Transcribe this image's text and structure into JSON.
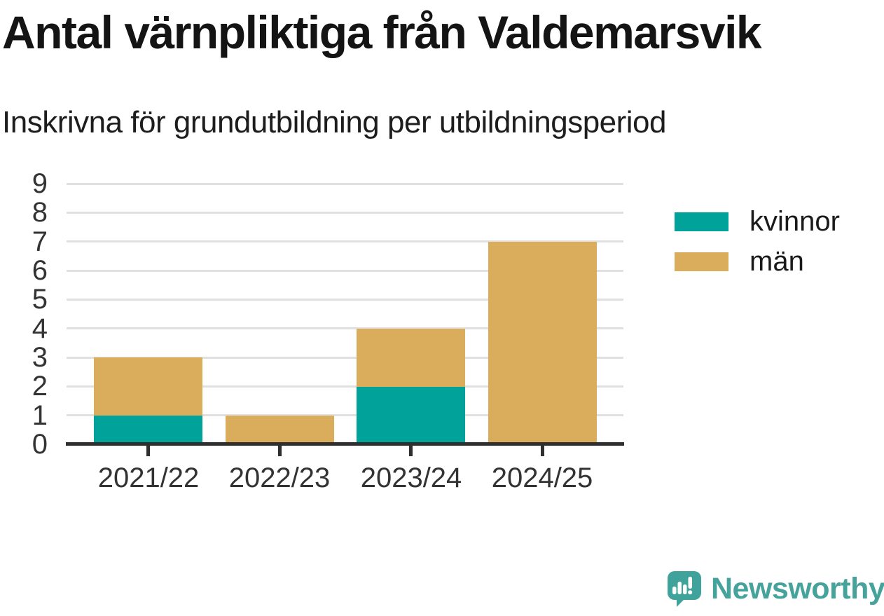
{
  "header": {
    "title": "Antal värnpliktiga från Valdemarsvik",
    "subtitle": "Inskrivna för grundutbildning per utbildningsperiod"
  },
  "chart_data": {
    "type": "bar",
    "stacked": true,
    "title": "Antal värnpliktiga från Valdemarsvik",
    "subtitle": "Inskrivna för grundutbildning per utbildningsperiod",
    "categories": [
      "2021/22",
      "2022/23",
      "2023/24",
      "2024/25"
    ],
    "series": [
      {
        "name": "kvinnor",
        "color": "#00a29a",
        "values": [
          1,
          0,
          2,
          0
        ]
      },
      {
        "name": "män",
        "color": "#d9ad5c",
        "values": [
          2,
          1,
          2,
          7
        ]
      }
    ],
    "totals": [
      3,
      1,
      4,
      7
    ],
    "xlabel": "",
    "ylabel": "",
    "ylim": [
      0,
      9
    ],
    "yticks": [
      0,
      1,
      2,
      3,
      4,
      5,
      6,
      7,
      8,
      9
    ],
    "grid": "horizontal",
    "legend_position": "right"
  },
  "branding": {
    "logo_text": "Newsworthy",
    "logo_color": "#45a39c",
    "logo_icon": "speech-bubble-bar-chart-exclamation"
  },
  "style": {
    "background": "#ffffff",
    "grid_color": "#e0e0e0",
    "axis_color": "#2f2f2f",
    "tick_text_color": "#333333",
    "title_color": "#141414"
  }
}
